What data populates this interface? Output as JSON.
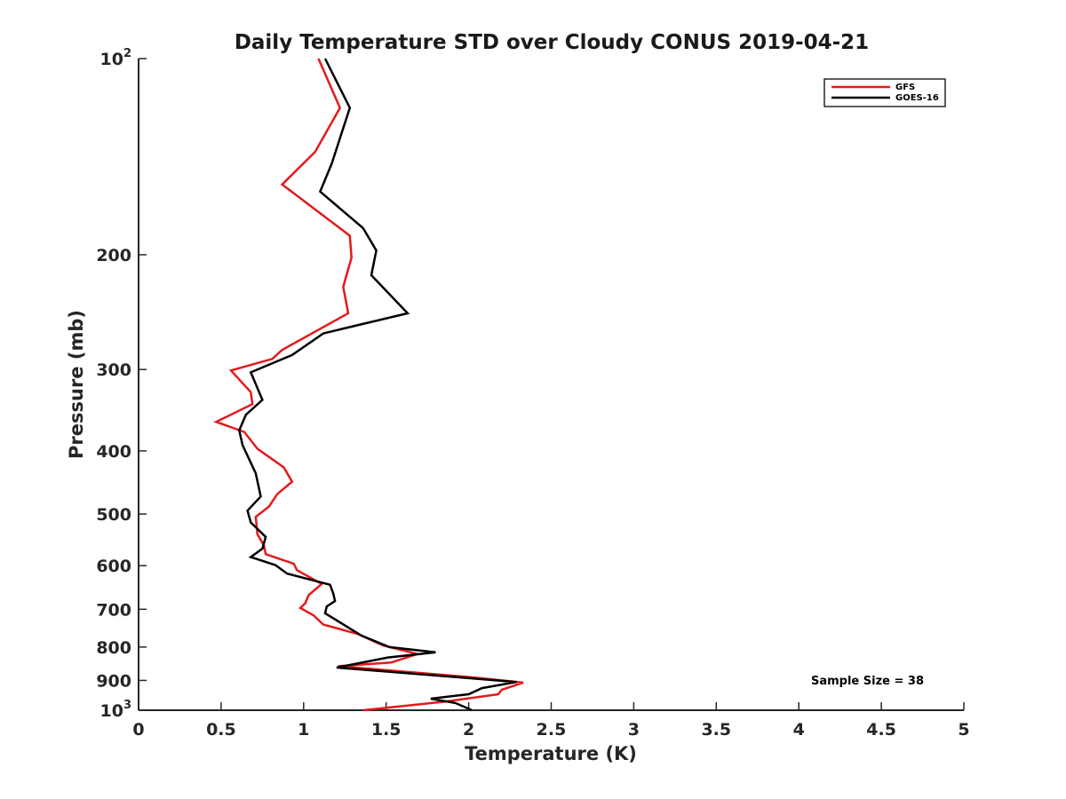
{
  "chart_data": {
    "type": "line",
    "title": "Daily Temperature STD over Cloudy CONUS 2019-04-21",
    "xlabel": "Temperature (K)",
    "ylabel": "Pressure (mb)",
    "xlim": [
      0,
      5
    ],
    "ylim": [
      100,
      1000
    ],
    "y_scale": "log",
    "y_reversed": true,
    "x_ticks": [
      0,
      0.5,
      1,
      1.5,
      2,
      2.5,
      3,
      3.5,
      4,
      4.5,
      5
    ],
    "x_tick_labels": [
      "0",
      "0.5",
      "1",
      "1.5",
      "2",
      "2.5",
      "3",
      "3.5",
      "4",
      "4.5",
      "5"
    ],
    "y_ticks": [
      {
        "value": 100,
        "base": "10",
        "exp": "2"
      },
      {
        "value": 200,
        "label": "200"
      },
      {
        "value": 300,
        "label": "300"
      },
      {
        "value": 400,
        "label": "400"
      },
      {
        "value": 500,
        "label": "500"
      },
      {
        "value": 600,
        "label": "600"
      },
      {
        "value": 700,
        "label": "700"
      },
      {
        "value": 800,
        "label": "800"
      },
      {
        "value": 900,
        "label": "900"
      },
      {
        "value": 1000,
        "base": "10",
        "exp": "3"
      }
    ],
    "legend": {
      "position": "top-right"
    },
    "grid": false,
    "annotation": "Sample Size = 38",
    "series": [
      {
        "name": "GFS",
        "color": "#e41a1c",
        "points": [
          [
            1.09,
            100
          ],
          [
            1.22,
            119
          ],
          [
            1.07,
            139
          ],
          [
            0.87,
            156
          ],
          [
            1.28,
            187
          ],
          [
            1.29,
            202
          ],
          [
            1.24,
            224
          ],
          [
            1.27,
            246
          ],
          [
            0.87,
            280
          ],
          [
            0.81,
            289
          ],
          [
            0.56,
            301
          ],
          [
            0.68,
            325
          ],
          [
            0.69,
            339
          ],
          [
            0.47,
            361
          ],
          [
            0.64,
            374
          ],
          [
            0.72,
            397
          ],
          [
            0.88,
            424
          ],
          [
            0.93,
            446
          ],
          [
            0.84,
            466
          ],
          [
            0.79,
            487
          ],
          [
            0.71,
            505
          ],
          [
            0.72,
            537
          ],
          [
            0.76,
            559
          ],
          [
            0.77,
            576
          ],
          [
            0.94,
            596
          ],
          [
            0.96,
            610
          ],
          [
            1.11,
            640
          ],
          [
            1.03,
            666
          ],
          [
            1.01,
            685
          ],
          [
            0.98,
            697
          ],
          [
            1.06,
            715
          ],
          [
            1.12,
            739
          ],
          [
            1.33,
            764
          ],
          [
            1.48,
            795
          ],
          [
            1.69,
            820
          ],
          [
            1.53,
            845
          ],
          [
            1.21,
            856
          ],
          [
            2.02,
            890
          ],
          [
            2.33,
            907
          ],
          [
            2.2,
            930
          ],
          [
            2.18,
            945
          ],
          [
            1.86,
            970
          ],
          [
            1.36,
            1000
          ]
        ]
      },
      {
        "name": "GOES-16",
        "color": "#000000",
        "points": [
          [
            1.13,
            100
          ],
          [
            1.28,
            119
          ],
          [
            1.17,
            145
          ],
          [
            1.1,
            160
          ],
          [
            1.36,
            182
          ],
          [
            1.44,
            197
          ],
          [
            1.41,
            215
          ],
          [
            1.63,
            246
          ],
          [
            1.12,
            264
          ],
          [
            0.93,
            285
          ],
          [
            0.68,
            303
          ],
          [
            0.75,
            334
          ],
          [
            0.65,
            352
          ],
          [
            0.61,
            372
          ],
          [
            0.63,
            392
          ],
          [
            0.71,
            433
          ],
          [
            0.74,
            470
          ],
          [
            0.66,
            494
          ],
          [
            0.68,
            515
          ],
          [
            0.77,
            542
          ],
          [
            0.75,
            565
          ],
          [
            0.68,
            582
          ],
          [
            0.83,
            599
          ],
          [
            0.9,
            617
          ],
          [
            1.16,
            642
          ],
          [
            1.18,
            662
          ],
          [
            1.19,
            680
          ],
          [
            1.14,
            693
          ],
          [
            1.13,
            710
          ],
          [
            1.35,
            768
          ],
          [
            1.52,
            800
          ],
          [
            1.8,
            815
          ],
          [
            1.51,
            830
          ],
          [
            1.2,
            860
          ],
          [
            2.29,
            905
          ],
          [
            2.08,
            925
          ],
          [
            2.0,
            945
          ],
          [
            1.77,
            960
          ],
          [
            1.92,
            975
          ],
          [
            2.02,
            1000
          ]
        ]
      }
    ]
  }
}
